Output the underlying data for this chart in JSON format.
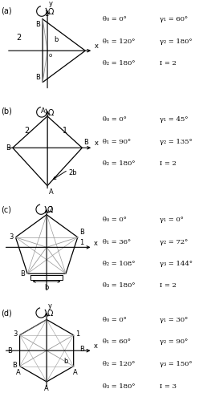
{
  "bg_color": "#ffffff",
  "panel_labels": [
    "(a)",
    "(b)",
    "(c)",
    "(d)"
  ],
  "text_a_left": [
    "θ₀ = 0°",
    "θ₁ = 120°",
    "θ₂ = 180°"
  ],
  "text_a_right": [
    "γ₁ = 60°",
    "γ₂ = 180°",
    "I = 2"
  ],
  "text_b_left": [
    "θ₀ = 0°",
    "θ₁ = 90°",
    "θ₂ = 180°"
  ],
  "text_b_right": [
    "γ₁ = 45°",
    "γ₂ = 135°",
    "I = 2"
  ],
  "text_c_left": [
    "θ₀ = 0°",
    "θ₁ = 36°",
    "θ₂ = 108°",
    "θ₃ = 180°"
  ],
  "text_c_right": [
    "γ₁ = 0°",
    "γ₂ = 72°",
    "γ₃ = 144°",
    "I = 2"
  ],
  "text_d_left": [
    "θ₀ = 0°",
    "θ₁ = 60°",
    "θ₂ = 120°",
    "θ₃ = 180°"
  ],
  "text_d_right": [
    "γ₁ = 30°",
    "γ₂ = 90°",
    "γ₃ = 150°",
    "I = 3"
  ],
  "gray": "#999999",
  "black": "#000000"
}
